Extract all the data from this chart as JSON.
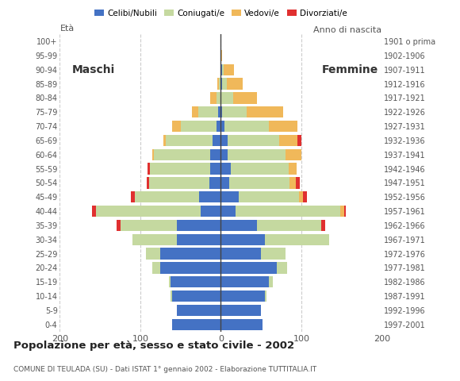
{
  "age_groups": [
    "0-4",
    "5-9",
    "10-14",
    "15-19",
    "20-24",
    "25-29",
    "30-34",
    "35-39",
    "40-44",
    "45-49",
    "50-54",
    "55-59",
    "60-64",
    "65-69",
    "70-74",
    "75-79",
    "80-84",
    "85-89",
    "90-94",
    "95-99",
    "100+"
  ],
  "birth_years": [
    "1997-2001",
    "1992-1996",
    "1987-1991",
    "1982-1986",
    "1977-1981",
    "1972-1976",
    "1967-1971",
    "1962-1966",
    "1957-1961",
    "1952-1956",
    "1947-1951",
    "1942-1946",
    "1937-1941",
    "1932-1936",
    "1927-1931",
    "1922-1926",
    "1917-1921",
    "1912-1916",
    "1907-1911",
    "1902-1906",
    "1901 o prima"
  ],
  "males": {
    "celibi": [
      60,
      55,
      60,
      62,
      75,
      75,
      55,
      55,
      25,
      27,
      14,
      13,
      13,
      10,
      5,
      3,
      0,
      0,
      0,
      0,
      0
    ],
    "coniugati": [
      0,
      0,
      2,
      2,
      10,
      18,
      55,
      70,
      130,
      80,
      75,
      75,
      70,
      58,
      45,
      25,
      5,
      2,
      0,
      0,
      0
    ],
    "vedovi": [
      0,
      0,
      0,
      0,
      0,
      0,
      0,
      0,
      0,
      0,
      0,
      0,
      2,
      3,
      10,
      8,
      8,
      2,
      0,
      0,
      0
    ],
    "divorziati": [
      0,
      0,
      0,
      0,
      0,
      0,
      0,
      4,
      5,
      5,
      3,
      3,
      0,
      0,
      0,
      0,
      0,
      0,
      0,
      0,
      0
    ]
  },
  "females": {
    "nubili": [
      52,
      50,
      55,
      60,
      70,
      50,
      55,
      45,
      18,
      22,
      10,
      12,
      8,
      8,
      5,
      2,
      0,
      2,
      2,
      0,
      0
    ],
    "coniugate": [
      0,
      0,
      2,
      5,
      12,
      30,
      80,
      80,
      130,
      75,
      75,
      72,
      72,
      65,
      55,
      30,
      15,
      5,
      2,
      0,
      0
    ],
    "vedove": [
      0,
      0,
      0,
      0,
      0,
      0,
      0,
      0,
      5,
      5,
      8,
      10,
      20,
      22,
      35,
      45,
      30,
      20,
      12,
      2,
      0
    ],
    "divorziate": [
      0,
      0,
      0,
      0,
      0,
      0,
      0,
      5,
      2,
      5,
      5,
      0,
      0,
      5,
      0,
      0,
      0,
      0,
      0,
      0,
      0
    ]
  },
  "colors": {
    "celibi": "#4472c4",
    "coniugati": "#c5d9a0",
    "vedovi": "#f0b85a",
    "divorziati": "#e03030"
  },
  "legend_labels": [
    "Celibi/Nubili",
    "Coniugati/e",
    "Vedovi/e",
    "Divorziati/e"
  ],
  "title": "Popolazione per età, sesso e stato civile - 2002",
  "subtitle": "COMUNE DI TEULADA (SU) - Dati ISTAT 1° gennaio 2002 - Elaborazione TUTTITALIA.IT",
  "label_eta": "Età",
  "label_anno": "Anno di nascita",
  "xlim": 200,
  "xticks": [
    -200,
    -100,
    0,
    100,
    200
  ],
  "xticklabels": [
    "200",
    "100",
    "0",
    "100",
    "200"
  ],
  "maschi_label": "Maschi",
  "femmine_label": "Femmine"
}
